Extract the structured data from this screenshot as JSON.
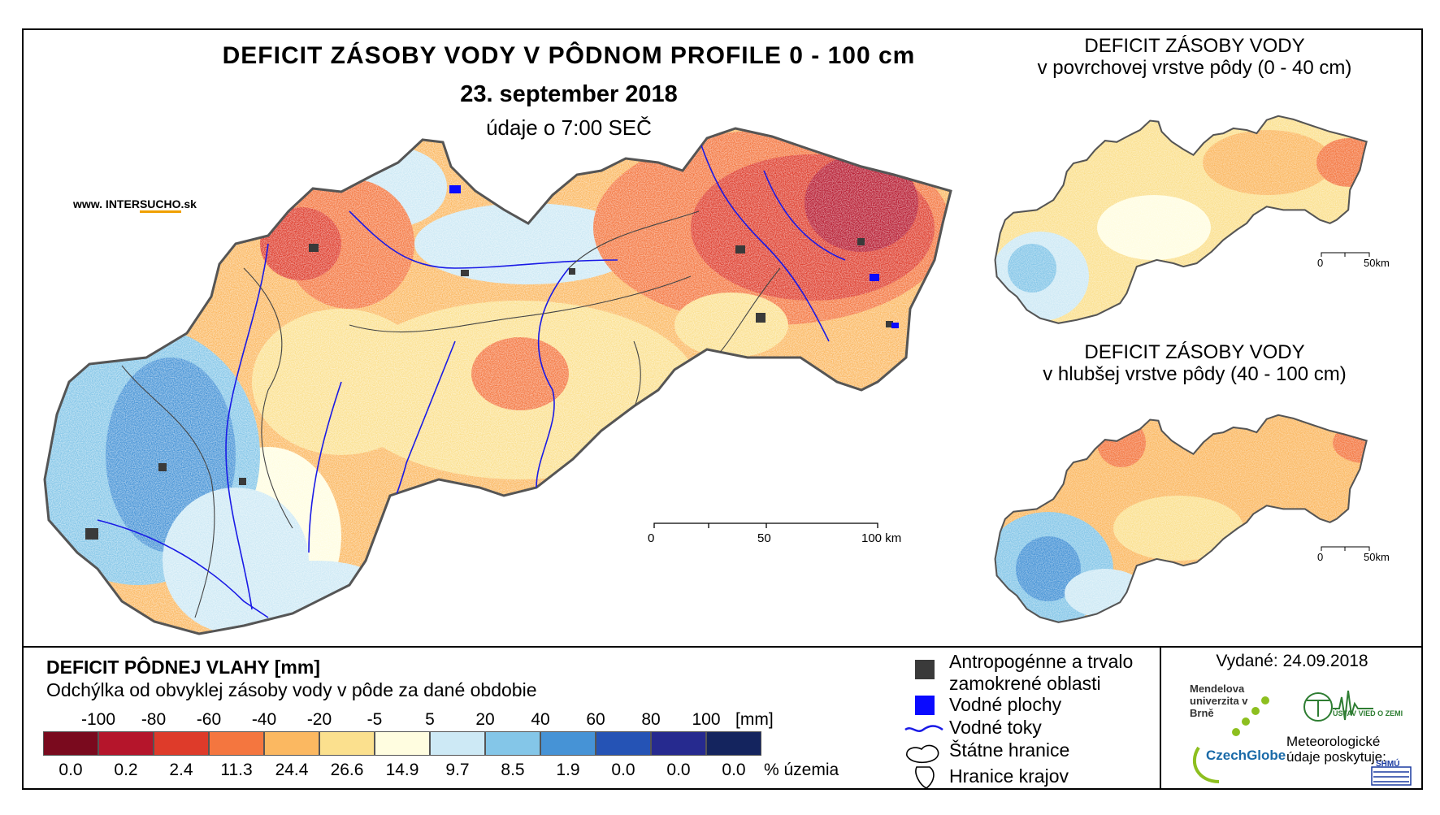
{
  "title": "DEFICIT ZÁSOBY VODY V PÔDNOM PROFILE 0 - 100 cm",
  "date": "23. september 2018",
  "time_note": "údaje o 7:00 SEČ",
  "source_site": {
    "prefix": "www. INTER",
    "highlight": "SUCHO",
    "suffix": ".sk"
  },
  "main_scale": {
    "labels": [
      "0",
      "50",
      "100 km"
    ]
  },
  "inset_top": {
    "title_line1": "DEFICIT ZÁSOBY VODY",
    "title_line2": "v povrchovej vrstve pôdy (0 - 40 cm)",
    "scale": [
      "0",
      "50km"
    ]
  },
  "inset_bottom": {
    "title_line1": "DEFICIT ZÁSOBY VODY",
    "title_line2": "v hlubšej vrstve pôdy (40 - 100 cm)",
    "scale": [
      "0",
      "50km"
    ]
  },
  "legend": {
    "title": "DEFICIT PÔDNEJ VLAHY [mm]",
    "subtitle": "Odchýlka od obvyklej zásoby vody v pôde za dané obdobie",
    "unit_mm": "[mm]",
    "unit_pct": "% územia",
    "thresholds": [
      "-100",
      "-80",
      "-60",
      "-40",
      "-20",
      "-5",
      "5",
      "20",
      "40",
      "60",
      "80",
      "100"
    ],
    "classes": [
      {
        "color": "#7a0a1e",
        "percent": "0.0"
      },
      {
        "color": "#b5152b",
        "percent": "0.2"
      },
      {
        "color": "#de3b2a",
        "percent": "2.4"
      },
      {
        "color": "#f4763f",
        "percent": "11.3"
      },
      {
        "color": "#fbb861",
        "percent": "24.4"
      },
      {
        "color": "#fbe08e",
        "percent": "26.6"
      },
      {
        "color": "#fffde0",
        "percent": "14.9"
      },
      {
        "color": "#cde9f5",
        "percent": "9.7"
      },
      {
        "color": "#84c6e8",
        "percent": "8.5"
      },
      {
        "color": "#4693d6",
        "percent": "1.9"
      },
      {
        "color": "#2553b5",
        "percent": "0.0"
      },
      {
        "color": "#262a8f",
        "percent": "0.0"
      },
      {
        "color": "#14245e",
        "percent": "0.0"
      }
    ]
  },
  "symbols": [
    {
      "label": "Antropogénne a trvalo zamokrené oblasti",
      "icon": "dark-square-icon",
      "color": "#3a3a3a"
    },
    {
      "label": "Vodné plochy",
      "icon": "blue-square-icon",
      "color": "#0a0aff"
    },
    {
      "label": "Vodné toky",
      "icon": "river-line-icon",
      "color": "#1a1ae6"
    },
    {
      "label": "Štátne hranice",
      "icon": "state-border-icon",
      "color": "#000000"
    },
    {
      "label": "Hranice krajov",
      "icon": "region-border-icon",
      "color": "#000000"
    }
  ],
  "issued": "Vydané: 24.09.2018",
  "logos": {
    "mendel": "Mendelova univerzita v Brně",
    "czechglobe": "CzechGlobe",
    "ustav": "ÚSTAV VIED O ZEMI",
    "meteo_note": "Meteorologické údaje poskytuje:",
    "shmu": "SHMÚ"
  }
}
